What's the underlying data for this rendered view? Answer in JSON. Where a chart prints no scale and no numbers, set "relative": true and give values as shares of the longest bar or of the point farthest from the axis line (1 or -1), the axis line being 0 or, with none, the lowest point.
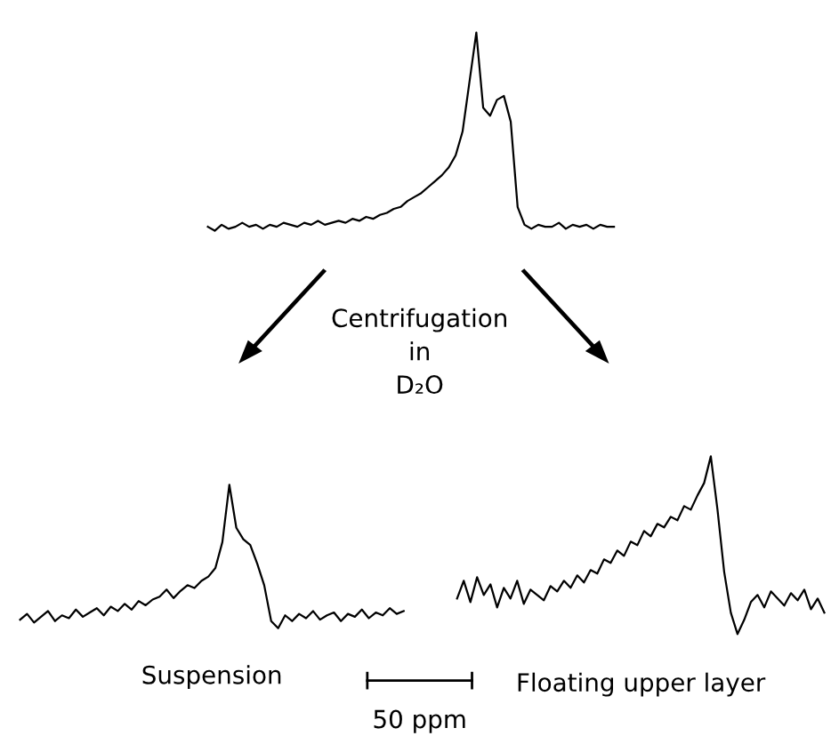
{
  "chart_data": [
    {
      "type": "line",
      "relative": true,
      "color": "#000000",
      "annotations": [
        "Centrifugation\nin\nD₂O",
        "50 ppm"
      ],
      "categories": [
        null,
        null,
        null,
        null,
        null,
        null,
        null,
        null,
        null,
        null,
        null,
        null,
        null,
        null,
        null,
        null,
        null,
        null,
        null,
        null,
        null,
        null,
        null,
        null,
        null,
        null,
        null,
        null,
        null,
        null,
        null,
        null,
        null,
        null,
        null,
        null,
        null,
        null,
        null,
        null,
        null,
        null,
        null,
        null,
        null,
        null,
        null,
        null,
        null,
        null,
        null,
        null,
        null,
        null,
        null,
        null,
        null,
        null,
        null,
        null
      ],
      "values": [
        0.02,
        0.0,
        0.03,
        0.01,
        0.02,
        0.04,
        0.02,
        0.03,
        0.01,
        0.03,
        0.02,
        0.04,
        0.03,
        0.02,
        0.04,
        0.03,
        0.05,
        0.03,
        0.04,
        0.05,
        0.04,
        0.06,
        0.05,
        0.07,
        0.06,
        0.08,
        0.09,
        0.11,
        0.12,
        0.15,
        0.17,
        0.19,
        0.22,
        0.25,
        0.28,
        0.32,
        0.38,
        0.5,
        0.75,
        1.0,
        0.62,
        0.58,
        0.66,
        0.68,
        0.55,
        0.12,
        0.03,
        0.01,
        0.03,
        0.02,
        0.02,
        0.04,
        0.01,
        0.03,
        0.02,
        0.03,
        0.01,
        0.03,
        0.02,
        0.02
      ]
    },
    {
      "type": "line",
      "relative": true,
      "color": "#000000",
      "xlabel": "Suspension",
      "categories": [
        null,
        null,
        null,
        null,
        null,
        null,
        null,
        null,
        null,
        null,
        null,
        null,
        null,
        null,
        null,
        null,
        null,
        null,
        null,
        null,
        null,
        null,
        null,
        null,
        null,
        null,
        null,
        null,
        null,
        null,
        null,
        null,
        null,
        null,
        null,
        null,
        null,
        null,
        null,
        null,
        null,
        null,
        null,
        null,
        null,
        null,
        null,
        null,
        null,
        null,
        null,
        null,
        null,
        null,
        null,
        null
      ],
      "values": [
        0.06,
        0.1,
        0.04,
        0.08,
        0.12,
        0.05,
        0.09,
        0.07,
        0.13,
        0.08,
        0.11,
        0.14,
        0.09,
        0.15,
        0.12,
        0.17,
        0.13,
        0.19,
        0.16,
        0.2,
        0.22,
        0.27,
        0.21,
        0.26,
        0.3,
        0.28,
        0.33,
        0.36,
        0.42,
        0.6,
        1.0,
        0.7,
        0.62,
        0.58,
        0.45,
        0.3,
        0.05,
        0.0,
        0.09,
        0.05,
        0.1,
        0.07,
        0.12,
        0.06,
        0.09,
        0.11,
        0.05,
        0.1,
        0.08,
        0.13,
        0.07,
        0.11,
        0.09,
        0.14,
        0.1,
        0.12
      ]
    },
    {
      "type": "line",
      "relative": true,
      "color": "#000000",
      "xlabel": "Floating upper layer",
      "categories": [
        null,
        null,
        null,
        null,
        null,
        null,
        null,
        null,
        null,
        null,
        null,
        null,
        null,
        null,
        null,
        null,
        null,
        null,
        null,
        null,
        null,
        null,
        null,
        null,
        null,
        null,
        null,
        null,
        null,
        null,
        null,
        null,
        null,
        null,
        null,
        null,
        null,
        null,
        null,
        null,
        null,
        null,
        null,
        null,
        null,
        null,
        null,
        null,
        null,
        null,
        null,
        null,
        null,
        null,
        null,
        null
      ],
      "values": [
        0.2,
        0.3,
        0.18,
        0.32,
        0.22,
        0.28,
        0.15,
        0.26,
        0.2,
        0.3,
        0.17,
        0.25,
        0.22,
        0.19,
        0.27,
        0.24,
        0.3,
        0.26,
        0.33,
        0.29,
        0.36,
        0.34,
        0.42,
        0.4,
        0.47,
        0.44,
        0.52,
        0.5,
        0.58,
        0.55,
        0.62,
        0.6,
        0.66,
        0.64,
        0.72,
        0.7,
        0.78,
        0.85,
        1.0,
        0.7,
        0.35,
        0.12,
        0.0,
        0.08,
        0.18,
        0.22,
        0.15,
        0.24,
        0.2,
        0.16,
        0.23,
        0.19,
        0.25,
        0.14,
        0.2,
        0.12
      ]
    }
  ]
}
